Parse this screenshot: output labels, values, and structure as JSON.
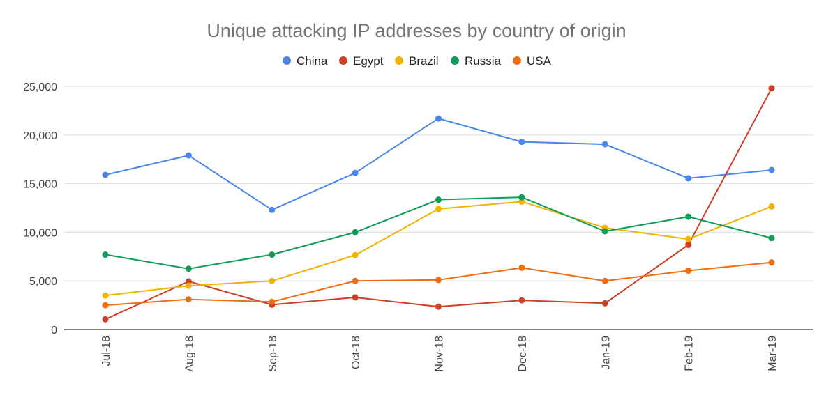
{
  "chart_data": {
    "type": "line",
    "title": "Unique attacking IP addresses by country of origin",
    "xlabel": "",
    "ylabel": "",
    "categories": [
      "Jul-18",
      "Aug-18",
      "Sep-18",
      "Oct-18",
      "Nov-18",
      "Dec-18",
      "Jan-19",
      "Feb-19",
      "Mar-19"
    ],
    "ylim": [
      0,
      25000
    ],
    "yticks": [
      0,
      5000,
      10000,
      15000,
      20000,
      25000
    ],
    "ytick_labels": [
      "0",
      "5,000",
      "10,000",
      "15,000",
      "20,000",
      "25,000"
    ],
    "grid": true,
    "legend_position": "top",
    "series": [
      {
        "name": "China",
        "color": "#4a86e8",
        "values": [
          15900,
          17900,
          12300,
          16100,
          21700,
          19300,
          19050,
          15550,
          16400
        ]
      },
      {
        "name": "Egypt",
        "color": "#cc4125",
        "values": [
          1050,
          4950,
          2550,
          3300,
          2350,
          3000,
          2700,
          8700,
          24800
        ]
      },
      {
        "name": "Brazil",
        "color": "#f1b300",
        "values": [
          3500,
          4500,
          5000,
          7650,
          12400,
          13150,
          10450,
          9300,
          12650
        ]
      },
      {
        "name": "Russia",
        "color": "#0f9d58",
        "values": [
          7700,
          6250,
          7700,
          10000,
          13350,
          13600,
          10100,
          11600,
          9400
        ]
      },
      {
        "name": "USA",
        "color": "#f06d0f",
        "values": [
          2500,
          3100,
          2850,
          5000,
          5100,
          6350,
          5000,
          6050,
          6900
        ]
      }
    ]
  }
}
